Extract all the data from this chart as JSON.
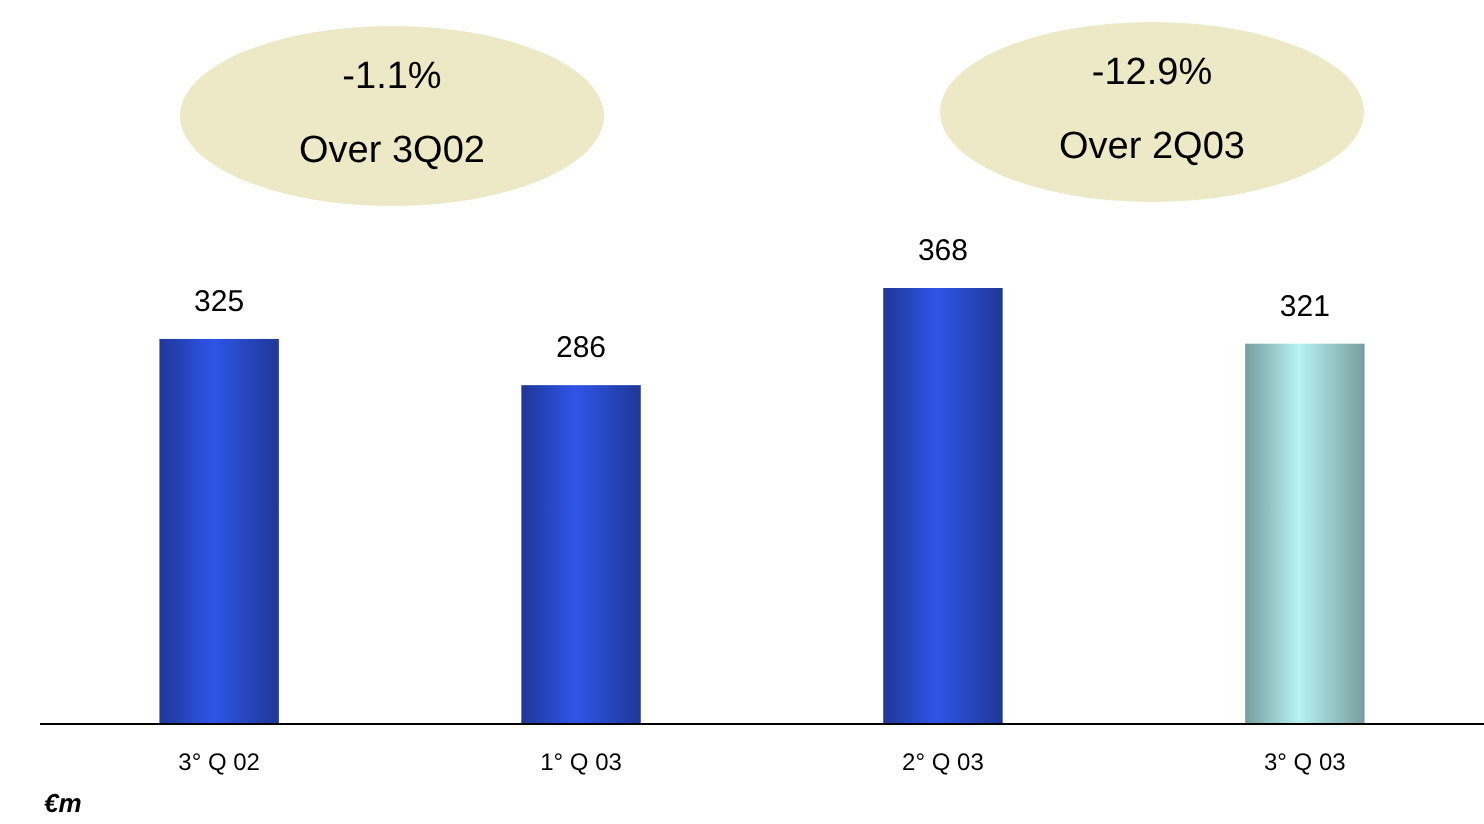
{
  "chart_data": {
    "type": "bar",
    "categories": [
      "3° Q 02",
      "1° Q 03",
      "2° Q 03",
      "3° Q 03"
    ],
    "values": [
      325,
      286,
      368,
      321
    ],
    "colors": [
      "#2f55e8",
      "#2f55e8",
      "#2f55e8",
      "#b8f2f2"
    ],
    "data_labels": true,
    "annotations": [
      "-1.1%\nOver 3Q02",
      "-12.9%\nOver 2Q03",
      "€m"
    ]
  }
}
